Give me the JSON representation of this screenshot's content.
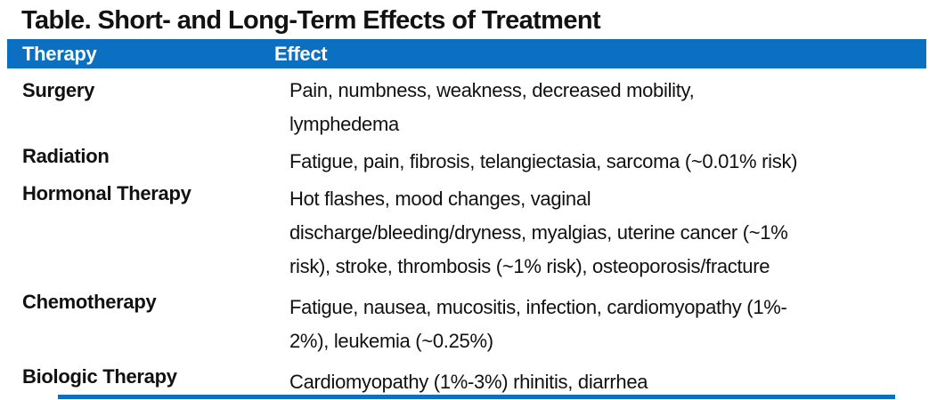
{
  "title": "Table. Short- and Long-Term Effects of Treatment",
  "colors": {
    "accent_blue": "#0B70C2",
    "header_text": "#FFFFFF",
    "body_text": "#111111"
  },
  "table": {
    "columns": [
      "Therapy",
      "Effect"
    ],
    "rows": [
      {
        "therapy": "Surgery",
        "effect": "Pain, numbness, weakness, decreased mobility,\nlymphedema"
      },
      {
        "therapy": "Radiation",
        "effect": "Fatigue, pain, fibrosis, telangiectasia, sarcoma (~0.01% risk)"
      },
      {
        "therapy": "Hormonal Therapy",
        "effect": "Hot flashes, mood changes, vaginal\ndischarge/bleeding/dryness, myalgias, uterine cancer (~1%\nrisk), stroke, thrombosis (~1% risk), osteoporosis/fracture"
      },
      {
        "therapy": "Chemotherapy",
        "effect": "Fatigue, nausea, mucositis, infection, cardiomyopathy (1%-\n2%), leukemia (~0.25%)"
      },
      {
        "therapy": "Biologic Therapy",
        "effect": "Cardiomyopathy (1%-3%) rhinitis, diarrhea"
      }
    ]
  }
}
